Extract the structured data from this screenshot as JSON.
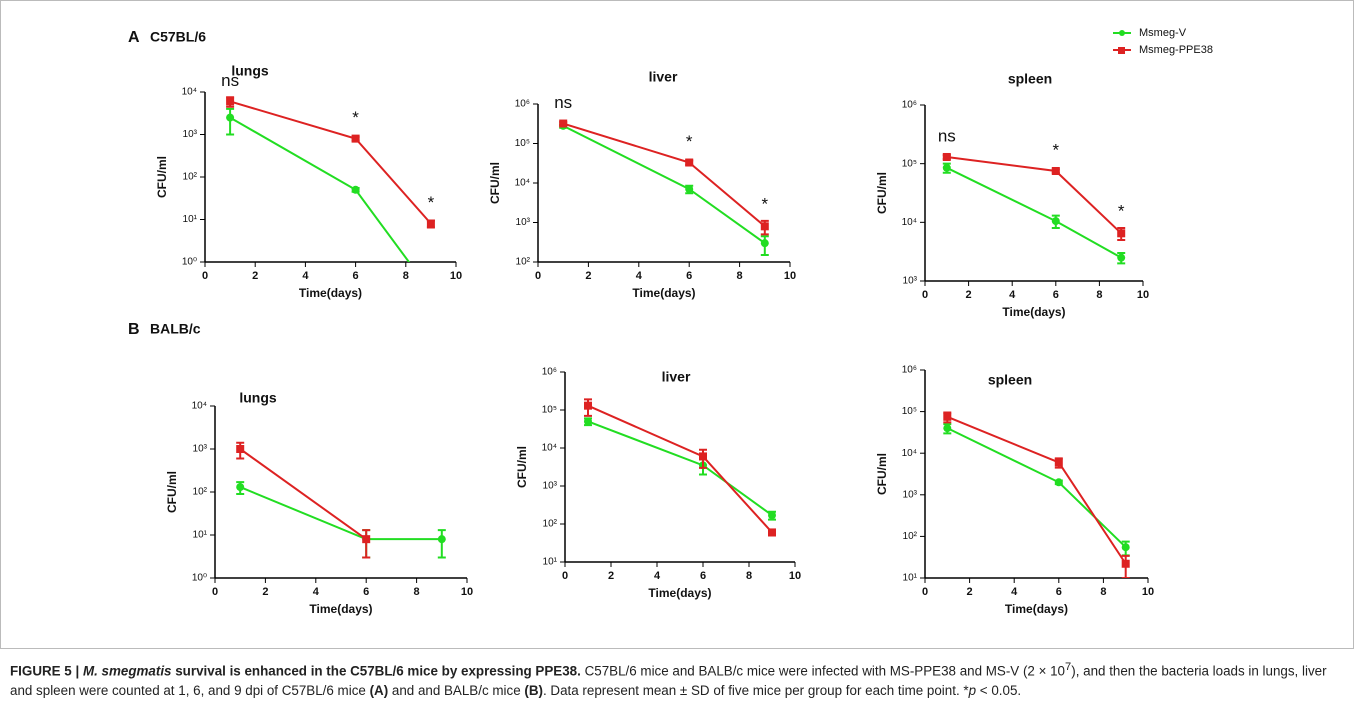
{
  "panels": [
    "A",
    "C57BL/6",
    "B",
    "BALB/c"
  ],
  "chart_data": [
    {
      "type": "line",
      "title": "lungs",
      "x_label": "Time(days)",
      "y_label": "CFU/ml",
      "log_y": true,
      "x": [
        1,
        6,
        9
      ],
      "annotations": [
        "ns",
        "*",
        "*"
      ],
      "xlim": [
        0,
        10
      ],
      "xticks": [
        0,
        2,
        4,
        6,
        8,
        10
      ],
      "ylim": [
        1,
        10000
      ],
      "yticks": [
        {
          "value": 1,
          "label": "10⁰"
        },
        {
          "value": 10,
          "label": "10¹"
        },
        {
          "value": 100,
          "label": "10²"
        },
        {
          "value": 1000,
          "label": "10³"
        },
        {
          "value": 10000,
          "label": "10⁴"
        }
      ],
      "series": [
        {
          "color": "#22dd22",
          "marker": "circle",
          "values": [
            2500,
            50,
            0.2
          ],
          "errors": [
            1500,
            5,
            null
          ]
        },
        {
          "color": "#dd2222",
          "marker": "square",
          "values": [
            6000,
            800,
            8
          ],
          "errors": [
            1500,
            80,
            1.5
          ]
        }
      ]
    },
    {
      "type": "line",
      "title": "liver",
      "x_label": "Time(days)",
      "y_label": "CFU/ml",
      "log_y": true,
      "x": [
        1,
        6,
        9
      ],
      "annotations": [
        "ns",
        "*",
        "*"
      ],
      "xlim": [
        0,
        10
      ],
      "xticks": [
        0,
        2,
        4,
        6,
        8,
        10
      ],
      "ylim": [
        100,
        1000000
      ],
      "yticks": [
        {
          "value": 100,
          "label": "10²"
        },
        {
          "value": 1000,
          "label": "10³"
        },
        {
          "value": 10000,
          "label": "10⁴"
        },
        {
          "value": 100000,
          "label": "10⁵"
        },
        {
          "value": 1000000,
          "label": "10⁶"
        }
      ],
      "series": [
        {
          "color": "#22dd22",
          "marker": "circle",
          "values": [
            280000,
            7000,
            300
          ],
          "errors": [
            30000,
            1500,
            150
          ]
        },
        {
          "color": "#dd2222",
          "marker": "square",
          "values": [
            320000,
            33000,
            800
          ],
          "errors": [
            30000,
            4000,
            300
          ]
        }
      ]
    },
    {
      "type": "line",
      "title": "spleen",
      "x_label": "Time(days)",
      "y_label": "CFU/ml",
      "log_y": true,
      "x": [
        1,
        6,
        9
      ],
      "annotations": [
        "ns",
        "*",
        "*"
      ],
      "legend": "upper right",
      "xlim": [
        0,
        10
      ],
      "xticks": [
        0,
        2,
        4,
        6,
        8,
        10
      ],
      "ylim": [
        1000,
        1000000
      ],
      "yticks": [
        {
          "value": 1000,
          "label": "10³"
        },
        {
          "value": 10000,
          "label": "10⁴"
        },
        {
          "value": 100000,
          "label": "10⁵"
        },
        {
          "value": 1000000,
          "label": "10⁶"
        }
      ],
      "series": [
        {
          "name": "Msmeg-V",
          "color": "#22dd22",
          "marker": "circle",
          "values": [
            85000,
            10500,
            2500
          ],
          "errors": [
            15000,
            2500,
            500
          ]
        },
        {
          "name": "Msmeg-PPE38",
          "color": "#dd2222",
          "marker": "square",
          "values": [
            130000,
            75000,
            6500
          ],
          "errors": [
            10000,
            5000,
            1500
          ]
        }
      ]
    },
    {
      "type": "line",
      "title": "lungs",
      "x_label": "Time(days)",
      "y_label": "CFU/ml",
      "log_y": true,
      "x": [
        1,
        6,
        9
      ],
      "xlim": [
        0,
        10
      ],
      "xticks": [
        0,
        2,
        4,
        6,
        8,
        10
      ],
      "ylim": [
        1,
        10000
      ],
      "yticks": [
        {
          "value": 1,
          "label": "10⁰"
        },
        {
          "value": 10,
          "label": "10¹"
        },
        {
          "value": 100,
          "label": "10²"
        },
        {
          "value": 1000,
          "label": "10³"
        },
        {
          "value": 10000,
          "label": "10⁴"
        }
      ],
      "series": [
        {
          "color": "#22dd22",
          "marker": "circle",
          "values": [
            130,
            8,
            8
          ],
          "errors": [
            40,
            5,
            5
          ]
        },
        {
          "color": "#dd2222",
          "marker": "square",
          "values": [
            1000,
            8,
            null
          ],
          "errors": [
            400,
            5,
            null
          ]
        }
      ]
    },
    {
      "type": "line",
      "title": "liver",
      "x_label": "Time(days)",
      "y_label": "CFU/ml",
      "log_y": true,
      "x": [
        1,
        6,
        9
      ],
      "xlim": [
        0,
        10
      ],
      "xticks": [
        0,
        2,
        4,
        6,
        8,
        10
      ],
      "ylim": [
        10,
        1000000
      ],
      "yticks": [
        {
          "value": 10,
          "label": "10¹"
        },
        {
          "value": 100,
          "label": "10²"
        },
        {
          "value": 1000,
          "label": "10³"
        },
        {
          "value": 10000,
          "label": "10⁴"
        },
        {
          "value": 100000,
          "label": "10⁵"
        },
        {
          "value": 1000000,
          "label": "10⁶"
        }
      ],
      "series": [
        {
          "color": "#22dd22",
          "marker": "circle",
          "values": [
            50000,
            3500,
            170
          ],
          "errors": [
            10000,
            1500,
            40
          ]
        },
        {
          "color": "#dd2222",
          "marker": "square",
          "values": [
            130000,
            6000,
            60
          ],
          "errors": [
            60000,
            3000,
            10
          ]
        }
      ]
    },
    {
      "type": "line",
      "title": "spleen",
      "x_label": "Time(days)",
      "y_label": "CFU/ml",
      "log_y": true,
      "x": [
        1,
        6,
        9
      ],
      "xlim": [
        0,
        10
      ],
      "xticks": [
        0,
        2,
        4,
        6,
        8,
        10
      ],
      "ylim": [
        10,
        1000000
      ],
      "yticks": [
        {
          "value": 10,
          "label": "10¹"
        },
        {
          "value": 100,
          "label": "10²"
        },
        {
          "value": 1000,
          "label": "10³"
        },
        {
          "value": 10000,
          "label": "10⁴"
        },
        {
          "value": 100000,
          "label": "10⁵"
        },
        {
          "value": 1000000,
          "label": "10⁶"
        }
      ],
      "series": [
        {
          "color": "#22dd22",
          "marker": "circle",
          "values": [
            40000,
            2000,
            55
          ],
          "errors": [
            10000,
            200,
            20
          ]
        },
        {
          "color": "#dd2222",
          "marker": "square",
          "values": [
            75000,
            6000,
            22
          ],
          "errors": [
            20000,
            1500,
            12
          ]
        }
      ]
    }
  ],
  "caption": [
    "FIGURE 5 | ",
    "M. smegmatis",
    " survival is enhanced in the C57BL/6 mice by expressing PPE38.",
    " C57BL/6 mice and BALB/c mice were infected with MS-PPE38 and MS-V (2 × 10",
    "7",
    "), and then the bacteria loads in lungs, liver and spleen were counted at 1, 6, and 9 dpi of C57BL/6 mice ",
    "(A)",
    " and and BALB/c mice ",
    "(B)",
    ". Data represent mean ± SD of five mice per group for each time point. *",
    "p",
    " < 0.05."
  ]
}
